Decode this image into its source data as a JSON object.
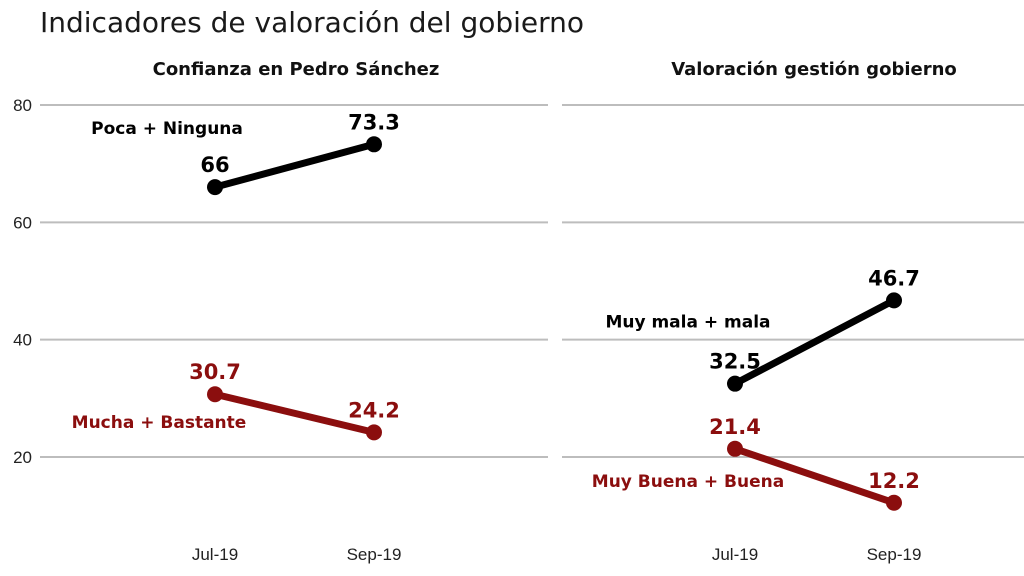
{
  "title": "Indicadores de valoración del gobierno",
  "colors": {
    "positive": "#8b0e0e",
    "negative": "#000000"
  },
  "chart_data": [
    {
      "type": "line",
      "title": "Confianza en Pedro Sánchez",
      "categories": [
        "Jul-19",
        "Sep-19"
      ],
      "ylim": [
        8,
        87
      ],
      "yticks": [
        20,
        40,
        60,
        80
      ],
      "grid": true,
      "series": [
        {
          "name": "Poca + Ninguna",
          "color": "#000000",
          "values": [
            66,
            73.3
          ],
          "labels": [
            "66",
            "73.3"
          ]
        },
        {
          "name": "Mucha + Bastante",
          "color": "#8b0e0e",
          "values": [
            30.7,
            24.2
          ],
          "labels": [
            "30.7",
            "24.2"
          ]
        }
      ]
    },
    {
      "type": "line",
      "title": "Valoración gestión gobierno",
      "categories": [
        "Jul-19",
        "Sep-19"
      ],
      "ylim": [
        8,
        87
      ],
      "yticks": [
        20,
        40,
        60,
        80
      ],
      "grid": true,
      "series": [
        {
          "name": "Muy mala + mala",
          "color": "#000000",
          "values": [
            32.5,
            46.7
          ],
          "labels": [
            "32.5",
            "46.7"
          ]
        },
        {
          "name": "Muy Buena + Buena",
          "color": "#8b0e0e",
          "values": [
            21.4,
            12.2
          ],
          "labels": [
            "21.4",
            "12.2"
          ]
        }
      ]
    }
  ]
}
